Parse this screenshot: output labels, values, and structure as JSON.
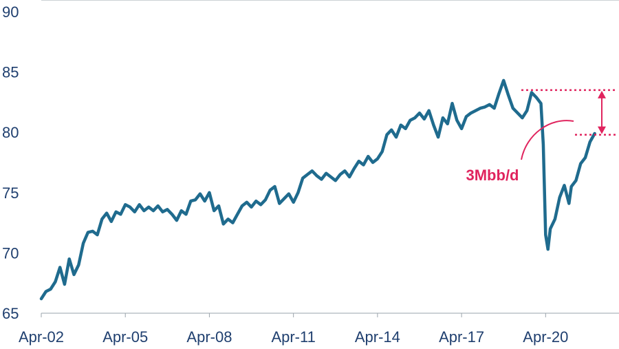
{
  "chart_data": {
    "type": "line",
    "title": "",
    "xlabel": "",
    "ylabel": "",
    "ylim": [
      65,
      90
    ],
    "yticks": [
      65,
      70,
      75,
      80,
      85,
      90
    ],
    "xlim": [
      "2002-04",
      "2022-02"
    ],
    "xticks": [
      {
        "label": "Apr-02",
        "date": "2002-04"
      },
      {
        "label": "Apr-05",
        "date": "2005-04"
      },
      {
        "label": "Apr-08",
        "date": "2008-04"
      },
      {
        "label": "Apr-11",
        "date": "2011-04"
      },
      {
        "label": "Apr-14",
        "date": "2014-04"
      },
      {
        "label": "Apr-17",
        "date": "2017-04"
      },
      {
        "label": "Apr-20",
        "date": "2020-04"
      }
    ],
    "grid": false,
    "series": [
      {
        "color": "#1f6b8e",
        "points": [
          [
            "2002-04",
            66.2
          ],
          [
            "2002-06",
            66.8
          ],
          [
            "2002-08",
            67.0
          ],
          [
            "2002-10",
            67.6
          ],
          [
            "2002-12",
            68.8
          ],
          [
            "2003-02",
            67.4
          ],
          [
            "2003-04",
            69.5
          ],
          [
            "2003-06",
            68.2
          ],
          [
            "2003-08",
            69.0
          ],
          [
            "2003-10",
            70.8
          ],
          [
            "2003-12",
            71.7
          ],
          [
            "2004-02",
            71.8
          ],
          [
            "2004-04",
            71.5
          ],
          [
            "2004-06",
            72.8
          ],
          [
            "2004-08",
            73.3
          ],
          [
            "2004-10",
            72.6
          ],
          [
            "2004-12",
            73.4
          ],
          [
            "2005-02",
            73.2
          ],
          [
            "2005-04",
            74.0
          ],
          [
            "2005-06",
            73.8
          ],
          [
            "2005-08",
            73.4
          ],
          [
            "2005-10",
            74.0
          ],
          [
            "2005-12",
            73.5
          ],
          [
            "2006-02",
            73.8
          ],
          [
            "2006-04",
            73.5
          ],
          [
            "2006-06",
            73.9
          ],
          [
            "2006-08",
            73.4
          ],
          [
            "2006-10",
            73.6
          ],
          [
            "2006-12",
            73.2
          ],
          [
            "2007-02",
            72.7
          ],
          [
            "2007-04",
            73.5
          ],
          [
            "2007-06",
            73.2
          ],
          [
            "2007-08",
            74.3
          ],
          [
            "2007-10",
            74.4
          ],
          [
            "2007-12",
            74.9
          ],
          [
            "2008-02",
            74.3
          ],
          [
            "2008-04",
            75.0
          ],
          [
            "2008-06",
            73.5
          ],
          [
            "2008-08",
            73.9
          ],
          [
            "2008-10",
            72.4
          ],
          [
            "2008-12",
            72.8
          ],
          [
            "2009-02",
            72.5
          ],
          [
            "2009-04",
            73.2
          ],
          [
            "2009-06",
            73.9
          ],
          [
            "2009-08",
            74.2
          ],
          [
            "2009-10",
            73.8
          ],
          [
            "2009-12",
            74.3
          ],
          [
            "2010-02",
            74.0
          ],
          [
            "2010-04",
            74.4
          ],
          [
            "2010-06",
            75.2
          ],
          [
            "2010-08",
            75.5
          ],
          [
            "2010-10",
            74.1
          ],
          [
            "2010-12",
            74.5
          ],
          [
            "2011-02",
            74.9
          ],
          [
            "2011-04",
            74.2
          ],
          [
            "2011-06",
            75.0
          ],
          [
            "2011-08",
            76.2
          ],
          [
            "2011-10",
            76.5
          ],
          [
            "2011-12",
            76.8
          ],
          [
            "2012-02",
            76.4
          ],
          [
            "2012-04",
            76.1
          ],
          [
            "2012-06",
            76.6
          ],
          [
            "2012-08",
            76.3
          ],
          [
            "2012-10",
            76.0
          ],
          [
            "2012-12",
            76.5
          ],
          [
            "2013-02",
            76.8
          ],
          [
            "2013-04",
            76.3
          ],
          [
            "2013-06",
            77.0
          ],
          [
            "2013-08",
            77.6
          ],
          [
            "2013-10",
            77.3
          ],
          [
            "2013-12",
            78.0
          ],
          [
            "2014-02",
            77.5
          ],
          [
            "2014-04",
            77.8
          ],
          [
            "2014-06",
            78.4
          ],
          [
            "2014-08",
            79.8
          ],
          [
            "2014-10",
            80.2
          ],
          [
            "2014-12",
            79.6
          ],
          [
            "2015-02",
            80.6
          ],
          [
            "2015-04",
            80.3
          ],
          [
            "2015-06",
            81.0
          ],
          [
            "2015-08",
            81.2
          ],
          [
            "2015-10",
            81.6
          ],
          [
            "2015-12",
            81.1
          ],
          [
            "2016-02",
            81.8
          ],
          [
            "2016-04",
            80.6
          ],
          [
            "2016-06",
            79.6
          ],
          [
            "2016-08",
            81.2
          ],
          [
            "2016-10",
            80.7
          ],
          [
            "2016-12",
            82.4
          ],
          [
            "2017-02",
            81.0
          ],
          [
            "2017-04",
            80.3
          ],
          [
            "2017-06",
            81.3
          ],
          [
            "2017-08",
            81.6
          ],
          [
            "2017-10",
            81.8
          ],
          [
            "2017-12",
            82.0
          ],
          [
            "2018-02",
            82.1
          ],
          [
            "2018-04",
            82.3
          ],
          [
            "2018-06",
            82.0
          ],
          [
            "2018-08",
            83.2
          ],
          [
            "2018-10",
            84.3
          ],
          [
            "2018-12",
            83.1
          ],
          [
            "2019-02",
            82.0
          ],
          [
            "2019-04",
            81.6
          ],
          [
            "2019-06",
            81.2
          ],
          [
            "2019-08",
            81.8
          ],
          [
            "2019-10",
            83.3
          ],
          [
            "2019-12",
            82.9
          ],
          [
            "2020-02",
            82.4
          ],
          [
            "2020-03",
            79.0
          ],
          [
            "2020-04",
            71.5
          ],
          [
            "2020-05",
            70.3
          ],
          [
            "2020-06",
            72.0
          ],
          [
            "2020-08",
            72.8
          ],
          [
            "2020-10",
            74.6
          ],
          [
            "2020-12",
            75.6
          ],
          [
            "2021-02",
            74.1
          ],
          [
            "2021-03",
            75.5
          ],
          [
            "2021-05",
            76.0
          ],
          [
            "2021-07",
            77.4
          ],
          [
            "2021-09",
            77.9
          ],
          [
            "2021-11",
            79.2
          ],
          [
            "2022-01",
            79.9
          ]
        ]
      }
    ],
    "annotations": {
      "label": "3Mbb/d",
      "color": "#e0245e",
      "upper_level": 83.5,
      "lower_level": 79.8
    }
  }
}
